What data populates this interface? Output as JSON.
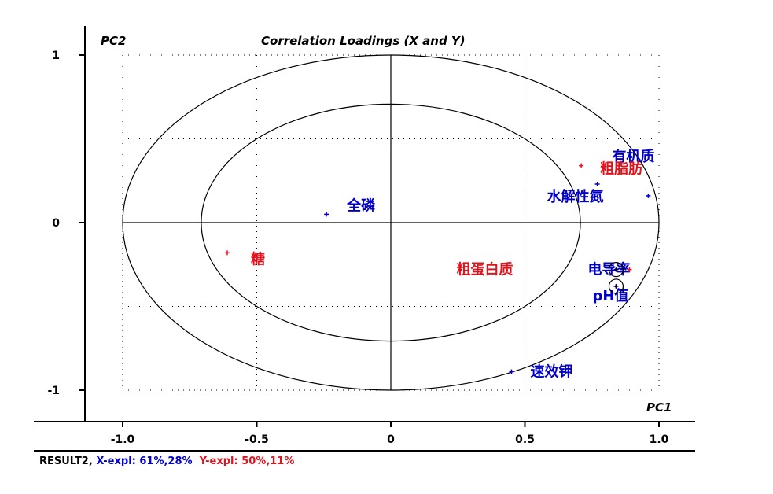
{
  "chart_data": {
    "type": "scatter",
    "title": "Correlation Loadings (X and Y)",
    "xlabel": "PC1",
    "ylabel": "PC2",
    "xlim": [
      -1.15,
      1.15
    ],
    "ylim": [
      -1.18,
      1.1
    ],
    "x_ticks": [
      "-1.0",
      "-0.5",
      "0",
      "0.5",
      "1.0"
    ],
    "x_tick_values": [
      -1.0,
      -0.5,
      0,
      0.5,
      1.0
    ],
    "y_ticks": [
      "1",
      "0",
      "-1"
    ],
    "y_tick_values": [
      1,
      0,
      -1
    ],
    "grid": "dotted",
    "circles": [
      1.0,
      0.707
    ],
    "series": [
      {
        "group": "X",
        "color": "#0000c8",
        "points": [
          {
            "label": "全磷",
            "x": -0.24,
            "y": 0.05
          },
          {
            "label": "有机质",
            "x": 0.96,
            "y": 0.16
          },
          {
            "label": "水解性氮",
            "x": 0.77,
            "y": 0.23
          },
          {
            "label": "电导率",
            "x": 0.84,
            "y": -0.28
          },
          {
            "label": "pH值",
            "x": 0.84,
            "y": -0.38
          },
          {
            "label": "速效钾",
            "x": 0.45,
            "y": -0.89
          }
        ]
      },
      {
        "group": "Y",
        "color": "#e0141e",
        "points": [
          {
            "label": "粗脂肪",
            "x": 0.71,
            "y": 0.34
          },
          {
            "label": "糖",
            "x": -0.61,
            "y": -0.18
          },
          {
            "label": "粗蛋白质",
            "x": 0.89,
            "y": -0.28
          }
        ]
      }
    ],
    "highlighted": [
      "电导率",
      "pH值"
    ]
  },
  "footer": {
    "result": "RESULT2, ",
    "x_expl": "X-expl: 61%,28%",
    "y_expl": "Y-expl: 50%,11%"
  }
}
